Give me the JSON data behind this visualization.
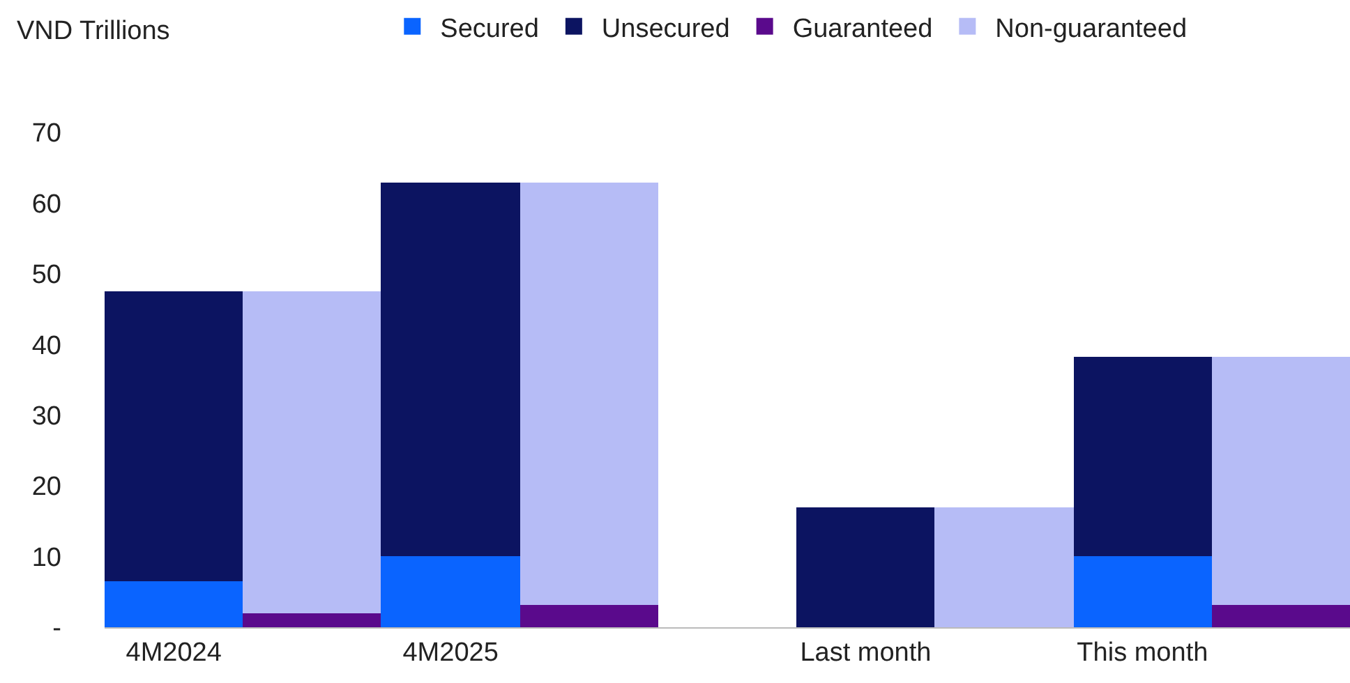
{
  "chart_data": {
    "type": "bar",
    "stacked": true,
    "ylabel": "VND Trillions",
    "categories": [
      "4M2024",
      null,
      "4M2025",
      null,
      null,
      "Last month",
      null,
      "This month",
      null
    ],
    "series": [
      {
        "name": "Secured",
        "color": "#0a64ff",
        "values": [
          6.6,
          null,
          10.1,
          null,
          null,
          0,
          null,
          10.1,
          null
        ]
      },
      {
        "name": "Unsecured",
        "color": "#0c1461",
        "values": [
          41.0,
          null,
          52.9,
          null,
          null,
          16.9,
          null,
          28.2,
          null
        ]
      },
      {
        "name": "Guaranteed",
        "color": "#5a0a8c",
        "values": [
          null,
          1.9,
          null,
          3.2,
          null,
          null,
          0,
          null,
          3.2
        ]
      },
      {
        "name": "Non-guaranteed",
        "color": "#b6bcf6",
        "values": [
          null,
          45.7,
          null,
          59.8,
          null,
          null,
          16.9,
          null,
          35.1
        ]
      }
    ],
    "ylim": [
      0,
      70
    ],
    "yticks": [
      {
        "value": 0,
        "label": "-"
      },
      10,
      20,
      30,
      40,
      50,
      60,
      70
    ],
    "legend": "top"
  }
}
